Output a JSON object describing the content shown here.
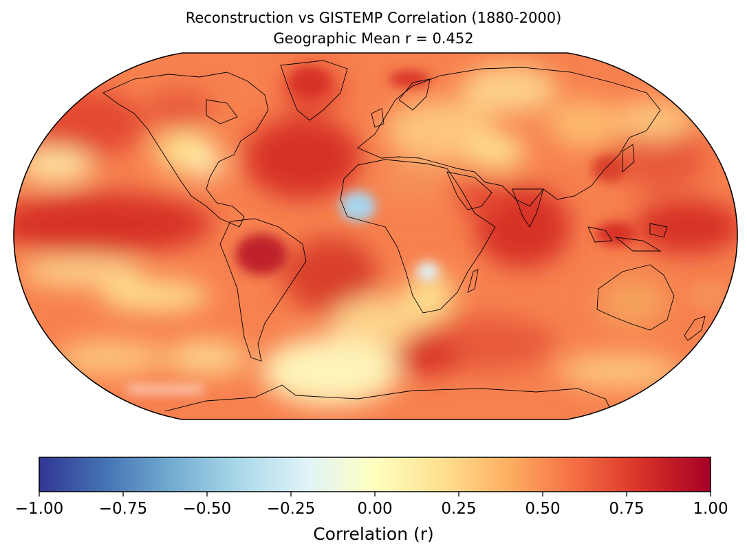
{
  "title": {
    "line1": "Reconstruction vs GISTEMP Correlation (1880-2000)",
    "line2": "Geographic Mean r = 0.452"
  },
  "map": {
    "projection": "Robinson",
    "variable": "correlation",
    "overall_tone": "mostly positive (orange-red), with pale yellow patches",
    "regions": [
      {
        "name": "West Africa (Guinea coast)",
        "r": -0.35
      },
      {
        "name": "Southern Africa interior",
        "r": -0.2
      },
      {
        "name": "Southern Ocean near Antarctica",
        "r": 0.05
      },
      {
        "name": "Amazon basin",
        "r": 0.8
      },
      {
        "name": "Tropical Pacific",
        "r": 0.7
      },
      {
        "name": "Indian Ocean",
        "r": 0.75
      },
      {
        "name": "North Atlantic",
        "r": 0.7
      },
      {
        "name": "South Atlantic",
        "r": 0.75
      },
      {
        "name": "Australia",
        "r": 0.55
      },
      {
        "name": "Eurasia interior",
        "r": 0.35
      }
    ]
  },
  "colorbar": {
    "colormap": "RdYlBu_r",
    "min": -1.0,
    "max": 1.0,
    "ticks": [
      "−1.00",
      "−0.75",
      "−0.50",
      "−0.25",
      "0.00",
      "0.25",
      "0.50",
      "0.75",
      "1.00"
    ],
    "label": "Correlation (r)",
    "stops": [
      "#313695",
      "#4575b4",
      "#74add1",
      "#abd9e9",
      "#e0f3f8",
      "#ffffbf",
      "#fee090",
      "#fdae61",
      "#f46d43",
      "#d73027",
      "#a50026"
    ]
  }
}
